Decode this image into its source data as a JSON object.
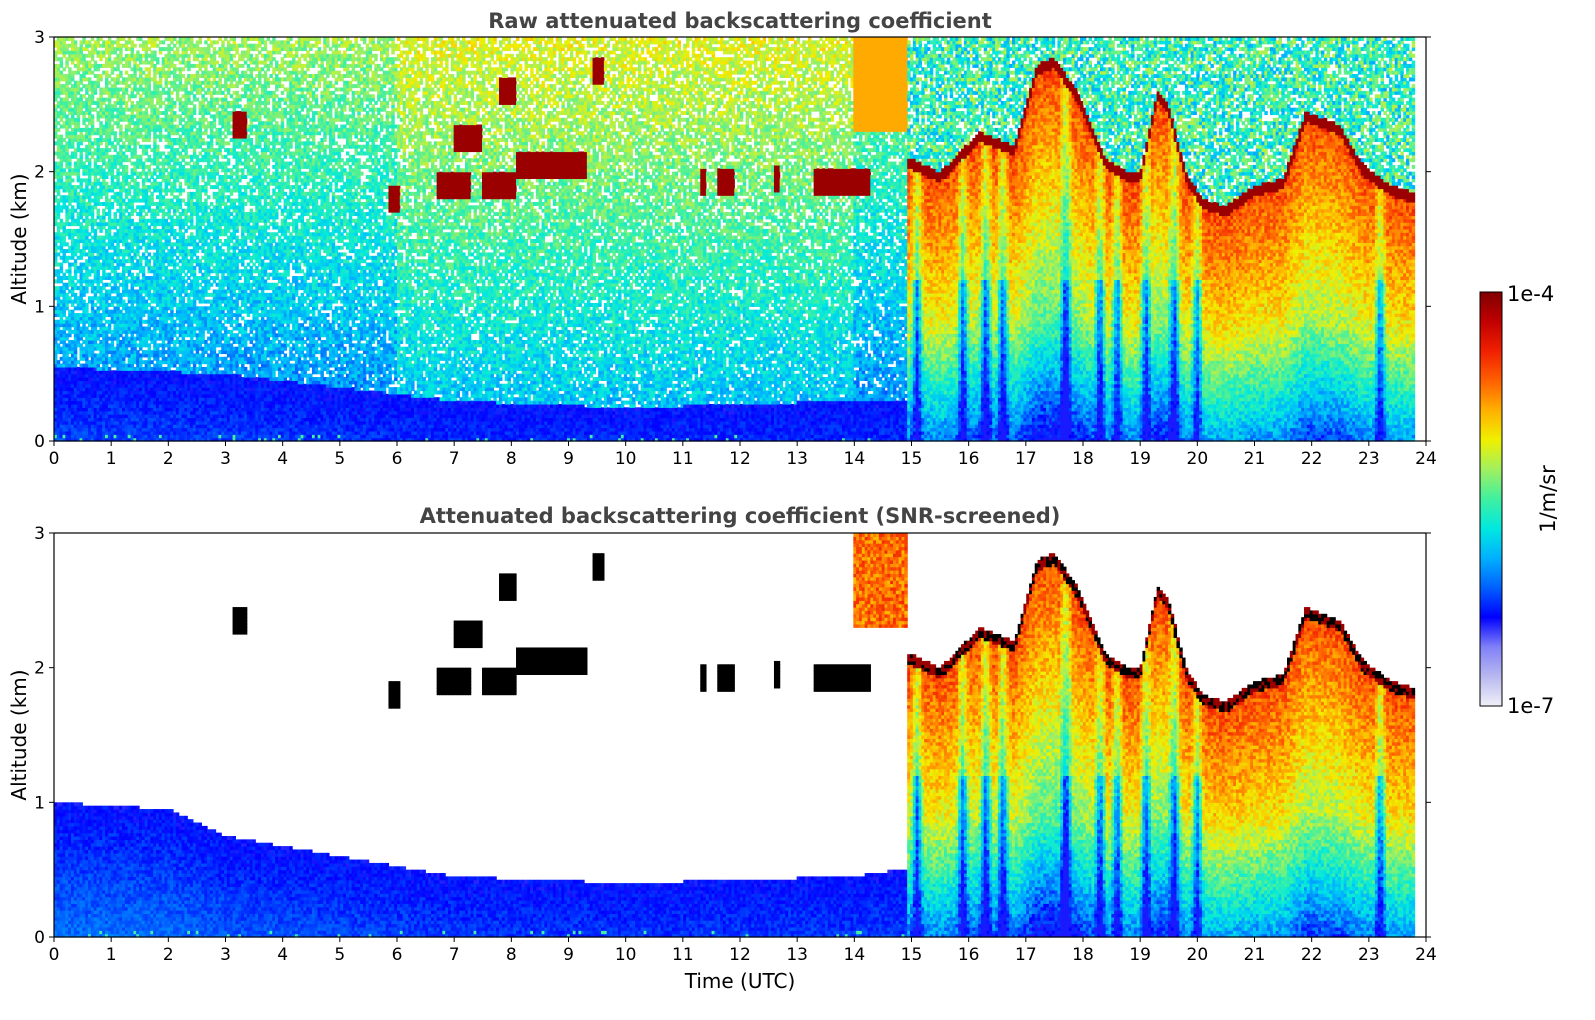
{
  "chart_data": [
    {
      "type": "heatmap",
      "title": "Raw attenuated backscattering coefficient",
      "xlabel": "",
      "ylabel": "Altitude (km)",
      "xlim": [
        0,
        24
      ],
      "ylim": [
        0,
        3
      ],
      "xticks": [
        "0",
        "1",
        "2",
        "3",
        "4",
        "5",
        "6",
        "7",
        "8",
        "9",
        "10",
        "11",
        "12",
        "13",
        "14",
        "15",
        "16",
        "17",
        "18",
        "19",
        "20",
        "21",
        "22",
        "23",
        "24"
      ],
      "yticks": [
        "0",
        "1",
        "2",
        "3"
      ],
      "screened": false,
      "boundary_layer_top_km": [
        [
          0,
          0.55
        ],
        [
          3,
          0.5
        ],
        [
          5,
          0.4
        ],
        [
          7,
          0.3
        ],
        [
          10,
          0.25
        ],
        [
          14,
          0.3
        ],
        [
          14.8,
          0.3
        ]
      ],
      "low_cloud_segments": [
        {
          "t0": 3.1,
          "t1": 3.35,
          "alt": 2.35
        },
        {
          "t0": 5.85,
          "t1": 6.05,
          "alt": 1.8
        },
        {
          "t0": 6.7,
          "t1": 7.3,
          "alt": 1.9
        },
        {
          "t0": 7.0,
          "t1": 7.5,
          "alt": 2.25
        },
        {
          "t0": 7.5,
          "t1": 8.1,
          "alt": 1.9
        },
        {
          "t0": 7.8,
          "t1": 8.1,
          "alt": 2.6
        },
        {
          "t0": 8.1,
          "t1": 9.3,
          "alt": 2.05
        },
        {
          "t0": 9.4,
          "t1": 9.6,
          "alt": 2.75
        },
        {
          "t0": 11.3,
          "t1": 11.4,
          "alt": 1.92
        },
        {
          "t0": 11.6,
          "t1": 11.9,
          "alt": 1.92
        },
        {
          "t0": 12.6,
          "t1": 12.7,
          "alt": 1.95
        },
        {
          "t0": 13.3,
          "t1": 14.3,
          "alt": 1.92
        }
      ],
      "cloud_top_km": [
        [
          15.0,
          2.1
        ],
        [
          15.5,
          2.0
        ],
        [
          16.2,
          2.3
        ],
        [
          16.8,
          2.2
        ],
        [
          17.2,
          2.8
        ],
        [
          17.5,
          2.85
        ],
        [
          17.9,
          2.6
        ],
        [
          18.4,
          2.1
        ],
        [
          18.8,
          2.0
        ],
        [
          19.0,
          2.0
        ],
        [
          19.3,
          2.6
        ],
        [
          19.5,
          2.5
        ],
        [
          19.8,
          2.0
        ],
        [
          20.1,
          1.8
        ],
        [
          20.5,
          1.75
        ],
        [
          21.0,
          1.9
        ],
        [
          21.5,
          1.95
        ],
        [
          21.9,
          2.45
        ],
        [
          22.5,
          2.35
        ],
        [
          22.9,
          2.05
        ],
        [
          23.4,
          1.9
        ],
        [
          23.8,
          1.85
        ]
      ],
      "rain_streaks_utc": [
        15.1,
        15.9,
        16.3,
        16.6,
        17.7,
        18.3,
        18.6,
        19.1,
        19.6,
        20.0,
        23.2
      ]
    },
    {
      "type": "heatmap",
      "title": "Attenuated backscattering coefficient (SNR-screened)",
      "xlabel": "Time (UTC)",
      "ylabel": "Altitude (km)",
      "xlim": [
        0,
        24
      ],
      "ylim": [
        0,
        3
      ],
      "xticks": [
        "0",
        "1",
        "2",
        "3",
        "4",
        "5",
        "6",
        "7",
        "8",
        "9",
        "10",
        "11",
        "12",
        "13",
        "14",
        "15",
        "16",
        "17",
        "18",
        "19",
        "20",
        "21",
        "22",
        "23",
        "24"
      ],
      "yticks": [
        "0",
        "1",
        "2",
        "3"
      ],
      "screened": true,
      "boundary_layer_top_km": [
        [
          0,
          1.0
        ],
        [
          2,
          0.95
        ],
        [
          3,
          0.75
        ],
        [
          5,
          0.6
        ],
        [
          7,
          0.45
        ],
        [
          10,
          0.4
        ],
        [
          14,
          0.45
        ],
        [
          14.8,
          0.5
        ]
      ]
    }
  ],
  "colorbar": {
    "max_label": "1e-4",
    "min_label": "1e-7",
    "unit_label": "1/m/sr",
    "colors": [
      "#f0f0f8",
      "#b8b8f0",
      "#8080f8",
      "#0000ff",
      "#0060ff",
      "#00b0ff",
      "#00e8e0",
      "#40f0a0",
      "#a0f060",
      "#f0f000",
      "#ffb000",
      "#ff6000",
      "#f02000",
      "#c00000",
      "#800000"
    ]
  }
}
